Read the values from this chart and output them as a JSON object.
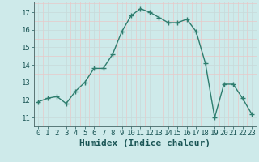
{
  "x": [
    0,
    1,
    2,
    3,
    4,
    5,
    6,
    7,
    8,
    9,
    10,
    11,
    12,
    13,
    14,
    15,
    16,
    17,
    18,
    19,
    20,
    21,
    22,
    23
  ],
  "y": [
    11.9,
    12.1,
    12.2,
    11.8,
    12.5,
    13.0,
    13.8,
    13.8,
    14.6,
    15.9,
    16.8,
    17.2,
    17.0,
    16.7,
    16.4,
    16.4,
    16.6,
    15.9,
    14.1,
    11.0,
    12.9,
    12.9,
    12.1,
    11.2
  ],
  "line_color": "#2e7d6e",
  "marker": "+",
  "marker_size": 4,
  "bg_color": "#ceeaea",
  "grid_major_color": "#c8dada",
  "grid_minor_color": "#e8c8c8",
  "xlabel": "Humidex (Indice chaleur)",
  "xlabel_fontsize": 8,
  "xlim": [
    -0.5,
    23.5
  ],
  "ylim": [
    10.5,
    17.6
  ],
  "yticks": [
    11,
    12,
    13,
    14,
    15,
    16,
    17
  ],
  "xticks": [
    0,
    1,
    2,
    3,
    4,
    5,
    6,
    7,
    8,
    9,
    10,
    11,
    12,
    13,
    14,
    15,
    16,
    17,
    18,
    19,
    20,
    21,
    22,
    23
  ],
  "tick_fontsize": 6.5,
  "line_width": 1.0
}
